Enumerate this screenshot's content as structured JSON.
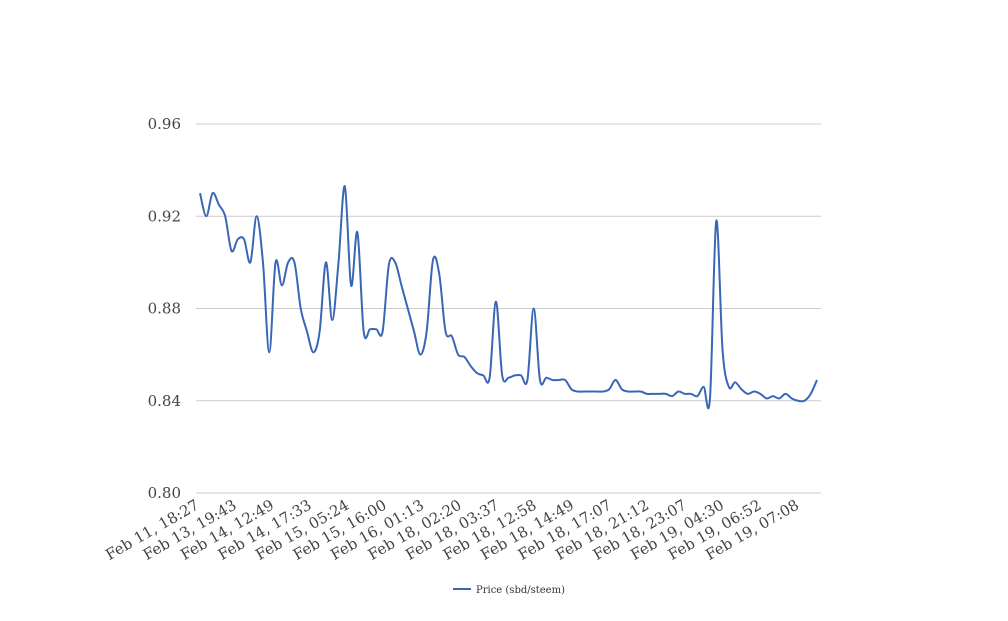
{
  "chart_data": {
    "type": "line",
    "title": "",
    "xlabel": "",
    "ylabel": "",
    "ylim": [
      0.8,
      0.96
    ],
    "yticks": [
      "0.80",
      "0.84",
      "0.88",
      "0.92",
      "0.96"
    ],
    "ytick_values": [
      0.8,
      0.84,
      0.88,
      0.92,
      0.96
    ],
    "x_tick_labels": [
      "Feb 11, 18:27",
      "Feb 13, 19:43",
      "Feb 14, 12:49",
      "Feb 14, 17:33",
      "Feb 15, 05:24",
      "Feb 15, 16:00",
      "Feb 16, 01:13",
      "Feb 18, 02:20",
      "Feb 18, 03:37",
      "Feb 18, 12:58",
      "Feb 18, 14:49",
      "Feb 18, 17:07",
      "Feb 18, 21:12",
      "Feb 18, 23:07",
      "Feb 19, 04:30",
      "Feb 19, 06:52",
      "Feb 19, 07:08"
    ],
    "grid": true,
    "legend_position": "bottom",
    "series": [
      {
        "name": "Price (sbd/steem)",
        "color": "#3a66b6",
        "values": [
          0.93,
          0.92,
          0.93,
          0.925,
          0.92,
          0.905,
          0.91,
          0.91,
          0.9,
          0.92,
          0.9,
          0.861,
          0.9,
          0.89,
          0.9,
          0.9,
          0.88,
          0.87,
          0.861,
          0.87,
          0.9,
          0.875,
          0.9,
          0.933,
          0.89,
          0.913,
          0.87,
          0.871,
          0.871,
          0.87,
          0.899,
          0.9,
          0.89,
          0.88,
          0.87,
          0.86,
          0.87,
          0.901,
          0.895,
          0.87,
          0.868,
          0.86,
          0.859,
          0.855,
          0.852,
          0.851,
          0.85,
          0.883,
          0.851,
          0.85,
          0.851,
          0.851,
          0.849,
          0.88,
          0.849,
          0.85,
          0.849,
          0.849,
          0.849,
          0.845,
          0.844,
          0.844,
          0.844,
          0.844,
          0.844,
          0.845,
          0.849,
          0.845,
          0.844,
          0.844,
          0.844,
          0.843,
          0.843,
          0.843,
          0.843,
          0.842,
          0.844,
          0.843,
          0.843,
          0.842,
          0.846,
          0.841,
          0.918,
          0.862,
          0.846,
          0.848,
          0.845,
          0.843,
          0.844,
          0.843,
          0.841,
          0.842,
          0.841,
          0.843,
          0.841,
          0.84,
          0.84,
          0.843,
          0.849
        ]
      }
    ]
  }
}
